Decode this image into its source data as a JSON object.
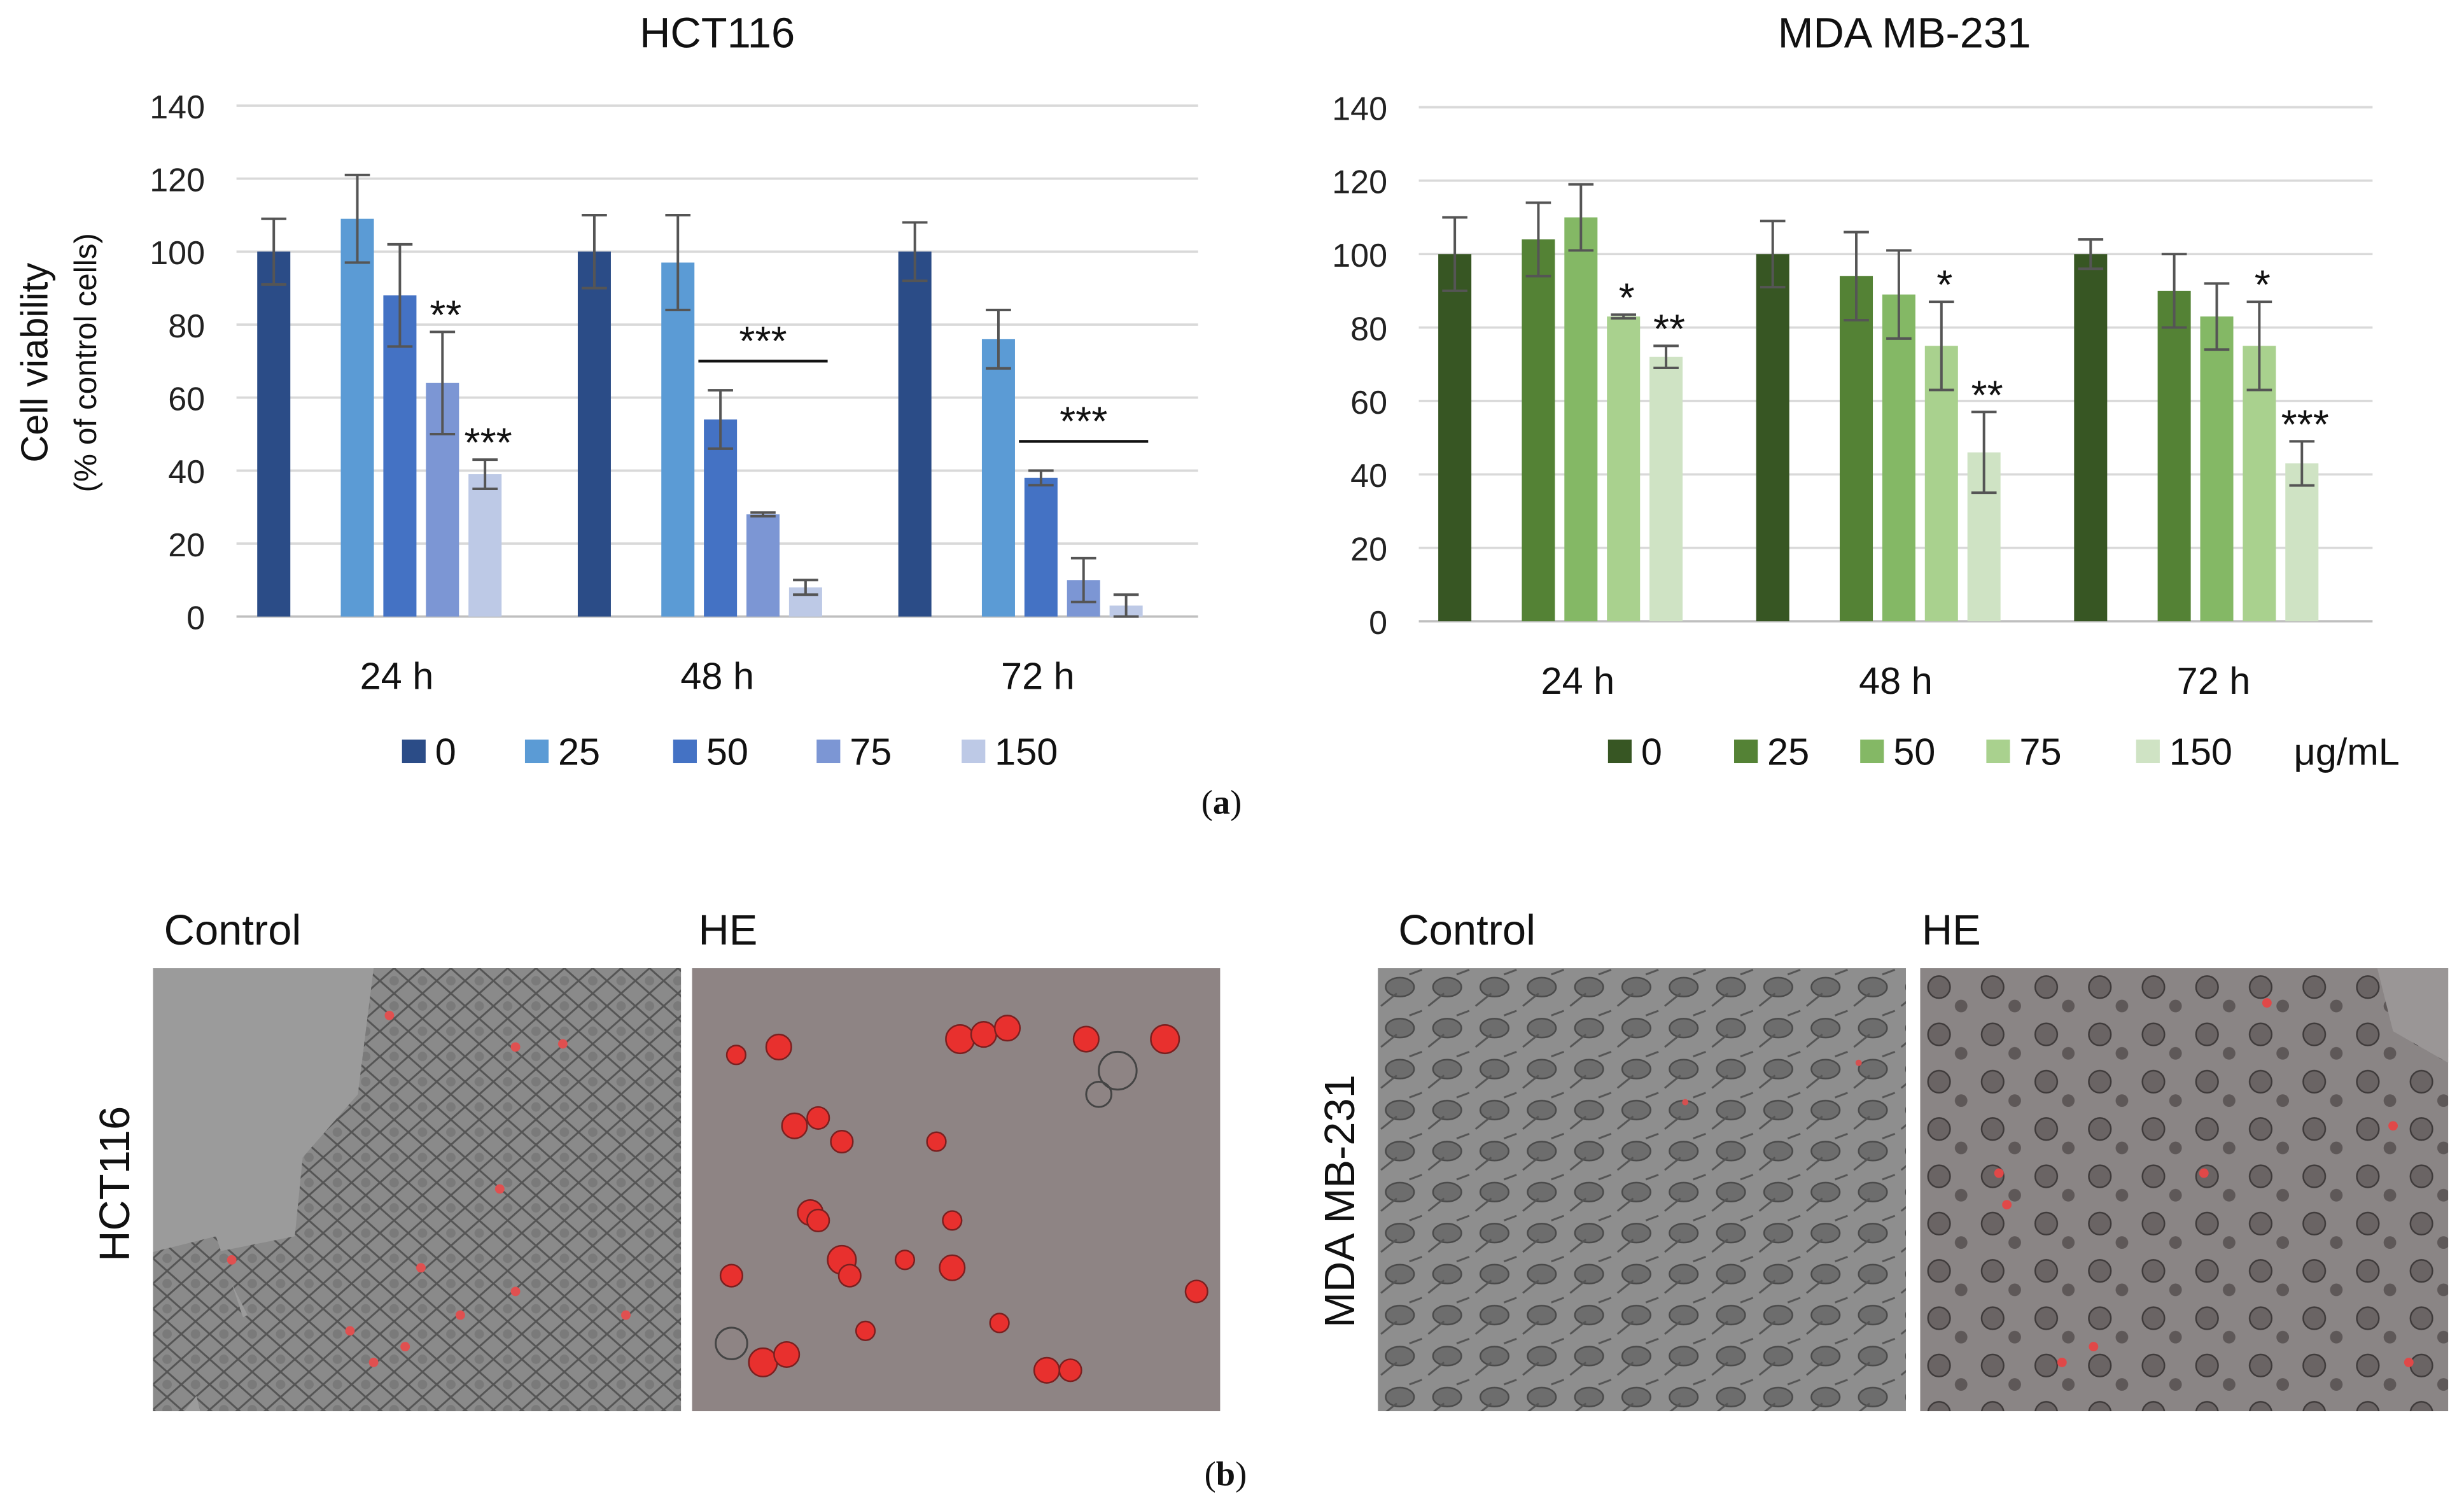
{
  "panel_a_caption": {
    "letter": "a",
    "open": "(",
    "close": ")"
  },
  "panel_b_caption": {
    "letter": "b",
    "open": "(",
    "close": ")"
  },
  "chart_data": [
    {
      "type": "bar",
      "title": "HCT116",
      "ylabel": "Cell viability",
      "ylabel2": "(% of control cells)",
      "xlabel": "",
      "ylim": [
        0,
        140
      ],
      "yticks": [
        0,
        20,
        40,
        60,
        80,
        100,
        120,
        140
      ],
      "categories": [
        "24 h",
        "48 h",
        "72 h"
      ],
      "grid": true,
      "legend_unit": "",
      "series": [
        {
          "name": "0",
          "color": "#2b4c87",
          "values": [
            100,
            100,
            100
          ],
          "errors": [
            9,
            10,
            8
          ]
        },
        {
          "name": "25",
          "color": "#5b9bd5",
          "values": [
            109,
            97,
            76
          ],
          "errors": [
            12,
            13,
            8
          ]
        },
        {
          "name": "50",
          "color": "#4472c4",
          "values": [
            88,
            54,
            38
          ],
          "errors": [
            14,
            8,
            2
          ]
        },
        {
          "name": "75",
          "color": "#7c96d4",
          "values": [
            64,
            28,
            10
          ],
          "errors": [
            14,
            0.5,
            6
          ]
        },
        {
          "name": "150",
          "color": "#bdc9e6",
          "values": [
            39,
            8,
            3
          ],
          "errors": [
            4,
            2,
            3
          ]
        }
      ],
      "annotations": [
        {
          "text": "**",
          "category": 0,
          "series": 3
        },
        {
          "text": "***",
          "category": 0,
          "series": 4
        },
        {
          "text": "***",
          "category": 1,
          "series_from": 2,
          "series_to": 4,
          "bracket": true
        },
        {
          "text": "***",
          "category": 2,
          "series_from": 2,
          "series_to": 4,
          "bracket": true
        }
      ]
    },
    {
      "type": "bar",
      "title": "MDA MB-231",
      "ylabel": "",
      "xlabel": "",
      "ylim": [
        0,
        140
      ],
      "yticks": [
        0,
        20,
        40,
        60,
        80,
        100,
        120,
        140
      ],
      "categories": [
        "24 h",
        "48 h",
        "72 h"
      ],
      "grid": true,
      "legend_unit": "μg/mL",
      "series": [
        {
          "name": "0",
          "color": "#375623",
          "values": [
            100,
            100,
            100
          ],
          "errors": [
            10,
            9,
            4
          ]
        },
        {
          "name": "25",
          "color": "#548235",
          "values": [
            104,
            94,
            90
          ],
          "errors": [
            10,
            12,
            10
          ]
        },
        {
          "name": "50",
          "color": "#84b865",
          "values": [
            110,
            89,
            83
          ],
          "errors": [
            9,
            12,
            9
          ]
        },
        {
          "name": "75",
          "color": "#a9d18e",
          "values": [
            83,
            75,
            75
          ],
          "errors": [
            0.5,
            12,
            12
          ]
        },
        {
          "name": "150",
          "color": "#cfe3c4",
          "values": [
            72,
            46,
            43
          ],
          "errors": [
            3,
            11,
            6
          ]
        }
      ],
      "annotations": [
        {
          "text": "*",
          "category": 0,
          "series": 3
        },
        {
          "text": "**",
          "category": 0,
          "series": 4
        },
        {
          "text": "*",
          "category": 1,
          "series": 3
        },
        {
          "text": "**",
          "category": 1,
          "series": 4
        },
        {
          "text": "*",
          "category": 2,
          "series": 3
        },
        {
          "text": "***",
          "category": 2,
          "series": 4
        }
      ]
    }
  ],
  "images": {
    "hct116": {
      "row_label": "HCT116",
      "control_label": "Control",
      "treated_label": "HE"
    },
    "mda": {
      "row_label": "MDA MB-231",
      "control_label": "Control",
      "treated_label": "HE"
    }
  }
}
